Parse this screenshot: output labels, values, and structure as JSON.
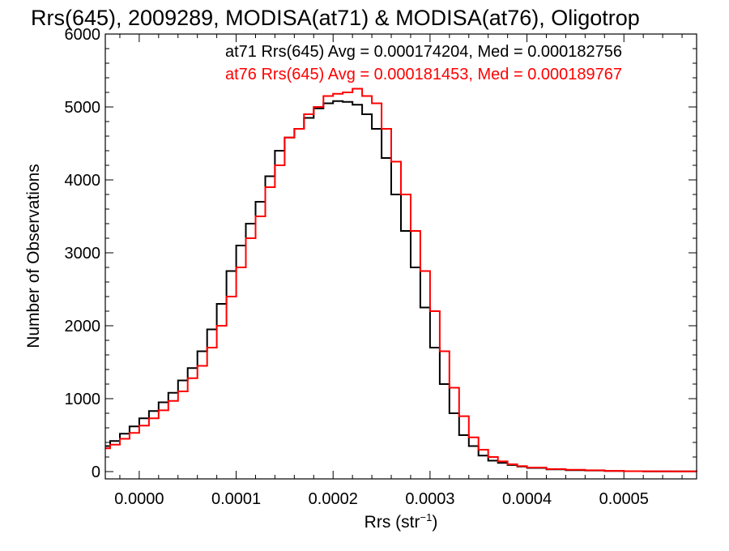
{
  "chart_data": {
    "type": "line",
    "step": true,
    "title": "Rrs(645), 2009289, MODISA(at71) & MODISA(at76), Oligotrop",
    "xlabel": "Rrs (str",
    "xlabel_sup": "−1",
    "xlabel_suffix": ")",
    "ylabel": "Number of Observations",
    "xlim": [
      -3.5e-05,
      0.000575
    ],
    "ylim": [
      -100,
      6000
    ],
    "x_ticks": [
      0.0,
      0.0001,
      0.0002,
      0.0003,
      0.0004,
      0.0005
    ],
    "x_tick_labels": [
      "0.0000",
      "0.0001",
      "0.0002",
      "0.0003",
      "0.0004",
      "0.0005"
    ],
    "y_ticks": [
      0,
      1000,
      2000,
      3000,
      4000,
      5000,
      6000
    ],
    "y_tick_labels": [
      "0",
      "1000",
      "2000",
      "3000",
      "4000",
      "5000",
      "6000"
    ],
    "grid": false,
    "annotations": [
      {
        "text": "at71 Rrs(645) Avg = 0.000174204, Med = 0.000182756",
        "color": "#000000"
      },
      {
        "text": "at76 Rrs(645) Avg = 0.000181453, Med = 0.000189767",
        "color": "#ff0000"
      }
    ],
    "series": [
      {
        "name": "at71",
        "color": "#000000",
        "x": [
          -3.5e-05,
          -3e-05,
          -2e-05,
          -1e-05,
          0.0,
          1e-05,
          2e-05,
          3e-05,
          4e-05,
          5e-05,
          6e-05,
          7e-05,
          8e-05,
          9e-05,
          0.0001,
          0.00011,
          0.00012,
          0.00013,
          0.00014,
          0.00015,
          0.00016,
          0.00017,
          0.00018,
          0.00019,
          0.0002,
          0.00021,
          0.00022,
          0.00023,
          0.00024,
          0.00025,
          0.00026,
          0.00027,
          0.00028,
          0.00029,
          0.0003,
          0.00031,
          0.00032,
          0.00033,
          0.00034,
          0.00035,
          0.00036,
          0.00037,
          0.00038,
          0.00039,
          0.0004,
          0.00042,
          0.00044,
          0.00046,
          0.00048,
          0.0005,
          0.00052,
          0.00055,
          0.000575
        ],
        "y": [
          350,
          420,
          520,
          620,
          730,
          830,
          950,
          1080,
          1250,
          1420,
          1650,
          1950,
          2300,
          2750,
          3100,
          3400,
          3700,
          4050,
          4400,
          4580,
          4700,
          4850,
          4980,
          5050,
          5080,
          5070,
          5030,
          4900,
          4700,
          4300,
          3800,
          3300,
          2800,
          2250,
          1700,
          1200,
          800,
          500,
          350,
          220,
          150,
          120,
          90,
          70,
          50,
          30,
          20,
          15,
          8,
          5,
          3,
          2,
          1
        ]
      },
      {
        "name": "at76",
        "color": "#ff0000",
        "x": [
          -3.5e-05,
          -3e-05,
          -2e-05,
          -1e-05,
          0.0,
          1e-05,
          2e-05,
          3e-05,
          4e-05,
          5e-05,
          6e-05,
          7e-05,
          8e-05,
          9e-05,
          0.0001,
          0.00011,
          0.00012,
          0.00013,
          0.00014,
          0.00015,
          0.00016,
          0.00017,
          0.00018,
          0.00019,
          0.0002,
          0.00021,
          0.00022,
          0.00023,
          0.00024,
          0.00025,
          0.00026,
          0.00027,
          0.00028,
          0.00029,
          0.0003,
          0.00031,
          0.00032,
          0.00033,
          0.00034,
          0.00035,
          0.00036,
          0.00037,
          0.00038,
          0.00039,
          0.0004,
          0.00042,
          0.00044,
          0.00046,
          0.00048,
          0.0005,
          0.00052,
          0.00055,
          0.000575
        ],
        "y": [
          320,
          370,
          450,
          530,
          630,
          730,
          840,
          970,
          1100,
          1280,
          1450,
          1700,
          2000,
          2400,
          2800,
          3200,
          3500,
          3900,
          4200,
          4580,
          4700,
          4900,
          5000,
          5150,
          5180,
          5200,
          5250,
          5150,
          5050,
          4700,
          4250,
          3800,
          3300,
          2750,
          2200,
          1650,
          1150,
          760,
          470,
          300,
          200,
          140,
          100,
          75,
          55,
          35,
          25,
          18,
          10,
          6,
          4,
          3,
          2
        ]
      }
    ]
  }
}
